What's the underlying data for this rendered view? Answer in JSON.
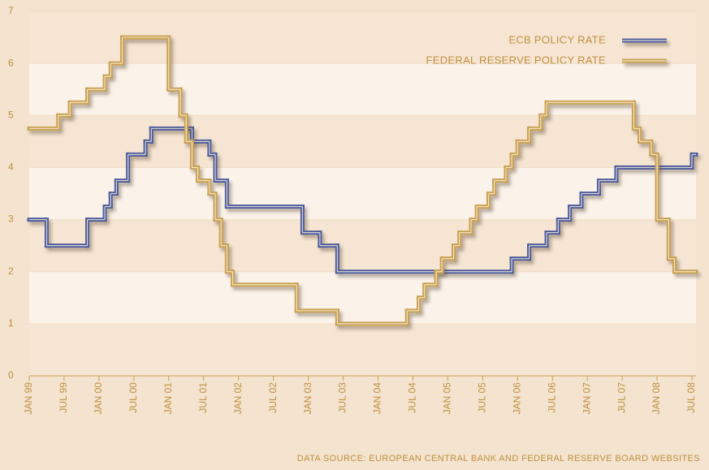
{
  "chart_data": {
    "type": "line",
    "step": true,
    "ylim": [
      0,
      7
    ],
    "yticks": [
      0,
      1,
      2,
      3,
      4,
      5,
      6,
      7
    ],
    "xlim": [
      "1999-01",
      "2008-07"
    ],
    "xticks": [
      {
        "value": "1999-01",
        "label": "JAN 99"
      },
      {
        "value": "1999-07",
        "label": "JUL 99"
      },
      {
        "value": "2000-01",
        "label": "JAN 00"
      },
      {
        "value": "2000-07",
        "label": "JUL 00"
      },
      {
        "value": "2001-01",
        "label": "JAN 01"
      },
      {
        "value": "2001-07",
        "label": "JUL 01"
      },
      {
        "value": "2002-01",
        "label": "JAN 02"
      },
      {
        "value": "2002-07",
        "label": "JUL 02"
      },
      {
        "value": "2003-01",
        "label": "JAN 03"
      },
      {
        "value": "2003-07",
        "label": "JUL 03"
      },
      {
        "value": "2004-01",
        "label": "JAN 04"
      },
      {
        "value": "2004-07",
        "label": "JUL 04"
      },
      {
        "value": "2005-01",
        "label": "JAN 05"
      },
      {
        "value": "2005-07",
        "label": "JUL 05"
      },
      {
        "value": "2006-01",
        "label": "JAN 06"
      },
      {
        "value": "2006-07",
        "label": "JUL 06"
      },
      {
        "value": "2007-01",
        "label": "JAN 07"
      },
      {
        "value": "2007-07",
        "label": "JUL 07"
      },
      {
        "value": "2008-01",
        "label": "JAN 08"
      },
      {
        "value": "2008-07",
        "label": "JUL 08"
      }
    ],
    "legend": "top-right",
    "series": [
      {
        "name": "ECB POLICY RATE",
        "color": "#4d5c9c",
        "x": [
          "1999-01",
          "1999-04",
          "1999-11",
          "2000-02",
          "2000-03",
          "2000-04",
          "2000-06",
          "2000-09",
          "2000-10",
          "2001-05",
          "2001-08",
          "2001-09",
          "2001-11",
          "2002-12",
          "2003-03",
          "2003-06",
          "2005-12",
          "2006-03",
          "2006-06",
          "2006-08",
          "2006-10",
          "2006-12",
          "2007-03",
          "2007-06",
          "2008-07"
        ],
        "values": [
          3.0,
          2.5,
          3.0,
          3.25,
          3.5,
          3.75,
          4.25,
          4.5,
          4.75,
          4.5,
          4.25,
          3.75,
          3.25,
          2.75,
          2.5,
          2.0,
          2.25,
          2.5,
          2.75,
          3.0,
          3.25,
          3.5,
          3.75,
          4.0,
          4.25
        ]
      },
      {
        "name": "FEDERAL RESERVE POLICY RATE",
        "color": "#c9a152",
        "x": [
          "1999-01",
          "1999-06",
          "1999-08",
          "1999-11",
          "2000-02",
          "2000-03",
          "2000-05",
          "2001-01",
          "2001-03",
          "2001-04",
          "2001-05",
          "2001-06",
          "2001-08",
          "2001-09",
          "2001-10",
          "2001-11",
          "2001-12",
          "2002-11",
          "2003-06",
          "2004-06",
          "2004-08",
          "2004-09",
          "2004-11",
          "2004-12",
          "2005-02",
          "2005-03",
          "2005-05",
          "2005-06",
          "2005-08",
          "2005-09",
          "2005-11",
          "2005-12",
          "2006-01",
          "2006-03",
          "2006-05",
          "2006-06",
          "2007-09",
          "2007-10",
          "2007-12",
          "2008-01",
          "2008-03",
          "2008-04"
        ],
        "values": [
          4.75,
          5.0,
          5.25,
          5.5,
          5.75,
          6.0,
          6.5,
          5.5,
          5.0,
          4.5,
          4.0,
          3.75,
          3.5,
          3.0,
          2.5,
          2.0,
          1.75,
          1.25,
          1.0,
          1.25,
          1.5,
          1.75,
          2.0,
          2.25,
          2.5,
          2.75,
          3.0,
          3.25,
          3.5,
          3.75,
          4.0,
          4.25,
          4.5,
          4.75,
          5.0,
          5.25,
          4.75,
          4.5,
          4.25,
          3.0,
          2.25,
          2.0
        ]
      }
    ],
    "source": "DATA SOURCE: EUROPEAN CENTRAL BANK AND FEDERAL RESERVE BOARD WEBSITES"
  }
}
